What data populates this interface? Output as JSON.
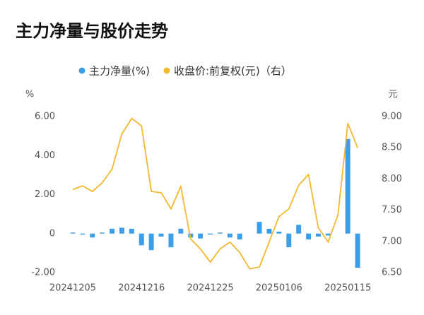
{
  "chart_data": {
    "type": "bar-line",
    "title": "主力净量与股价走势",
    "ylabel": "%",
    "y2label": "元",
    "categories": [
      "20241205",
      null,
      null,
      null,
      null,
      null,
      null,
      "20241216",
      null,
      null,
      null,
      null,
      null,
      null,
      "20241225",
      null,
      null,
      null,
      null,
      null,
      null,
      "20250106",
      null,
      null,
      null,
      null,
      null,
      null,
      "20250115",
      null
    ],
    "ylim": [
      -2,
      6
    ],
    "yticks": [
      {
        "value": -2,
        "label": "-2.00"
      },
      0,
      {
        "value": 2,
        "label": "2.00"
      },
      {
        "value": 4,
        "label": "4.00"
      },
      {
        "value": 6,
        "label": "6.00"
      }
    ],
    "y2lim": [
      6.5,
      9
    ],
    "y2ticks": [
      {
        "value": 6.5,
        "label": "6.50"
      },
      {
        "value": 7,
        "label": "7.00"
      },
      {
        "value": 7.5,
        "label": "7.50"
      },
      {
        "value": 8,
        "label": "8.00"
      },
      {
        "value": 8.5,
        "label": "8.50"
      },
      {
        "value": 9,
        "label": "9.00"
      }
    ],
    "grid": false,
    "series": [
      {
        "name": "主力净量(%)",
        "type": "bar",
        "color": "#3a9ee8",
        "values": [
          0.05,
          -0.05,
          -0.2,
          0.05,
          0.25,
          0.3,
          0.25,
          -0.6,
          -0.85,
          -0.15,
          -0.7,
          0.25,
          -0.2,
          -0.25,
          -0.05,
          0.05,
          -0.2,
          -0.3,
          0,
          0.6,
          0.25,
          0.1,
          -0.7,
          0.45,
          -0.3,
          -0.15,
          -0.1,
          0,
          4.85,
          -1.75
        ]
      },
      {
        "name": "收盘价:前复权(元)（右）",
        "type": "line",
        "axis": "y2",
        "color": "#f2b830",
        "values": [
          7.83,
          7.89,
          7.8,
          7.94,
          8.16,
          8.72,
          8.97,
          8.85,
          7.8,
          7.78,
          7.52,
          7.88,
          7.04,
          6.88,
          6.67,
          6.88,
          6.99,
          6.82,
          6.56,
          6.59,
          6.99,
          7.4,
          7.52,
          7.9,
          8.07,
          7.22,
          6.99,
          7.43,
          8.89,
          8.5
        ]
      }
    ]
  }
}
